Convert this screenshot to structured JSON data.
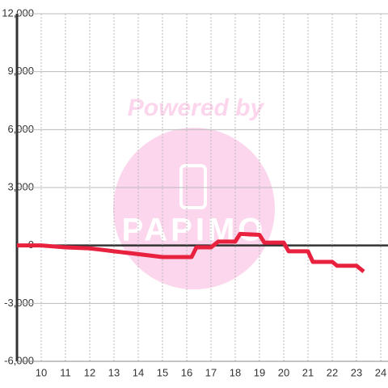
{
  "chart_data": {
    "type": "line",
    "watermark": {
      "line1": "Powered by",
      "line2": "PAPIMO"
    },
    "x": [
      9,
      10,
      11,
      12,
      13,
      14,
      15,
      16.2,
      16.4,
      17,
      17.3,
      18,
      18.2,
      19,
      19.2,
      20,
      20.2,
      21,
      21.2,
      22,
      22.2,
      23,
      23.3
    ],
    "series": [
      {
        "color": "#e8213f",
        "values": [
          0,
          0,
          -100,
          -150,
          -300,
          -450,
          -600,
          -600,
          -100,
          -100,
          200,
          200,
          600,
          550,
          150,
          150,
          -300,
          -300,
          -850,
          -850,
          -1050,
          -1050,
          -1350
        ]
      }
    ],
    "xlim": [
      9,
      25
    ],
    "xticks": [
      10,
      11,
      12,
      13,
      14,
      15,
      16,
      17,
      18,
      19,
      20,
      21,
      22,
      23,
      24
    ],
    "ylim": [
      -6000,
      12000
    ],
    "yticks": [
      {
        "value": -6000,
        "label": "-6,000"
      },
      {
        "value": -3000,
        "label": "-3,000"
      },
      0,
      {
        "value": 3000,
        "label": "3,000"
      },
      {
        "value": 6000,
        "label": "6,000"
      },
      {
        "value": 9000,
        "label": "9,000"
      },
      {
        "value": 12000,
        "label": "12,000"
      }
    ],
    "grid": true
  }
}
